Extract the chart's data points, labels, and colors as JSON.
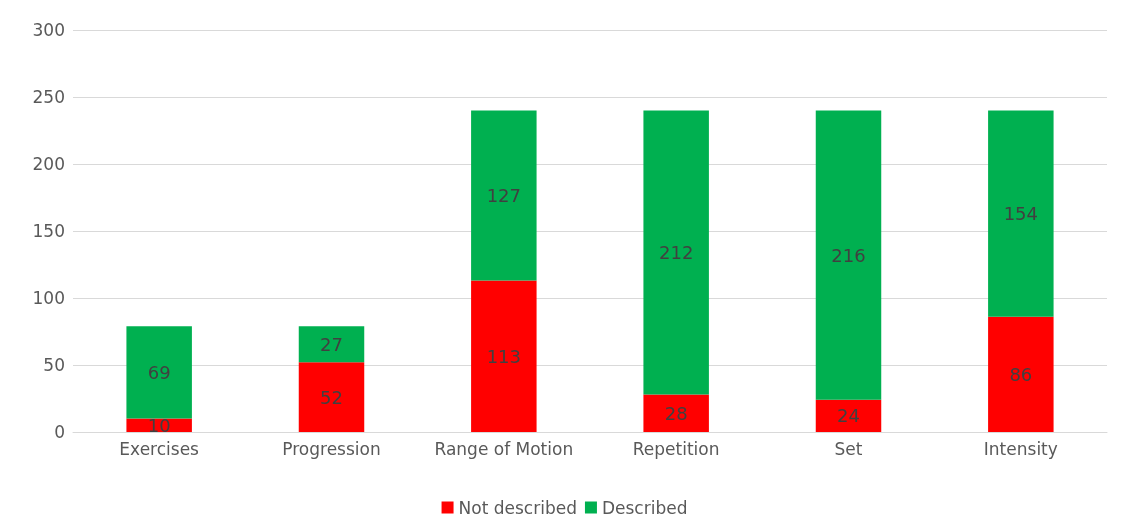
{
  "chart_data": {
    "type": "bar",
    "stacked": true,
    "categories": [
      "Exercises",
      "Progression",
      "Range of Motion",
      "Repetition",
      "Set",
      "Intensity"
    ],
    "series": [
      {
        "name": "Not described",
        "color": "#ff0000",
        "values": [
          10,
          52,
          113,
          28,
          24,
          86
        ]
      },
      {
        "name": "Described",
        "color": "#00b050",
        "values": [
          69,
          27,
          127,
          212,
          216,
          154
        ]
      }
    ],
    "ylim": [
      0,
      300
    ],
    "yticks": [
      0,
      50,
      100,
      150,
      200,
      250,
      300
    ],
    "grid": "y",
    "legend": "bottom",
    "data_labels": true
  }
}
